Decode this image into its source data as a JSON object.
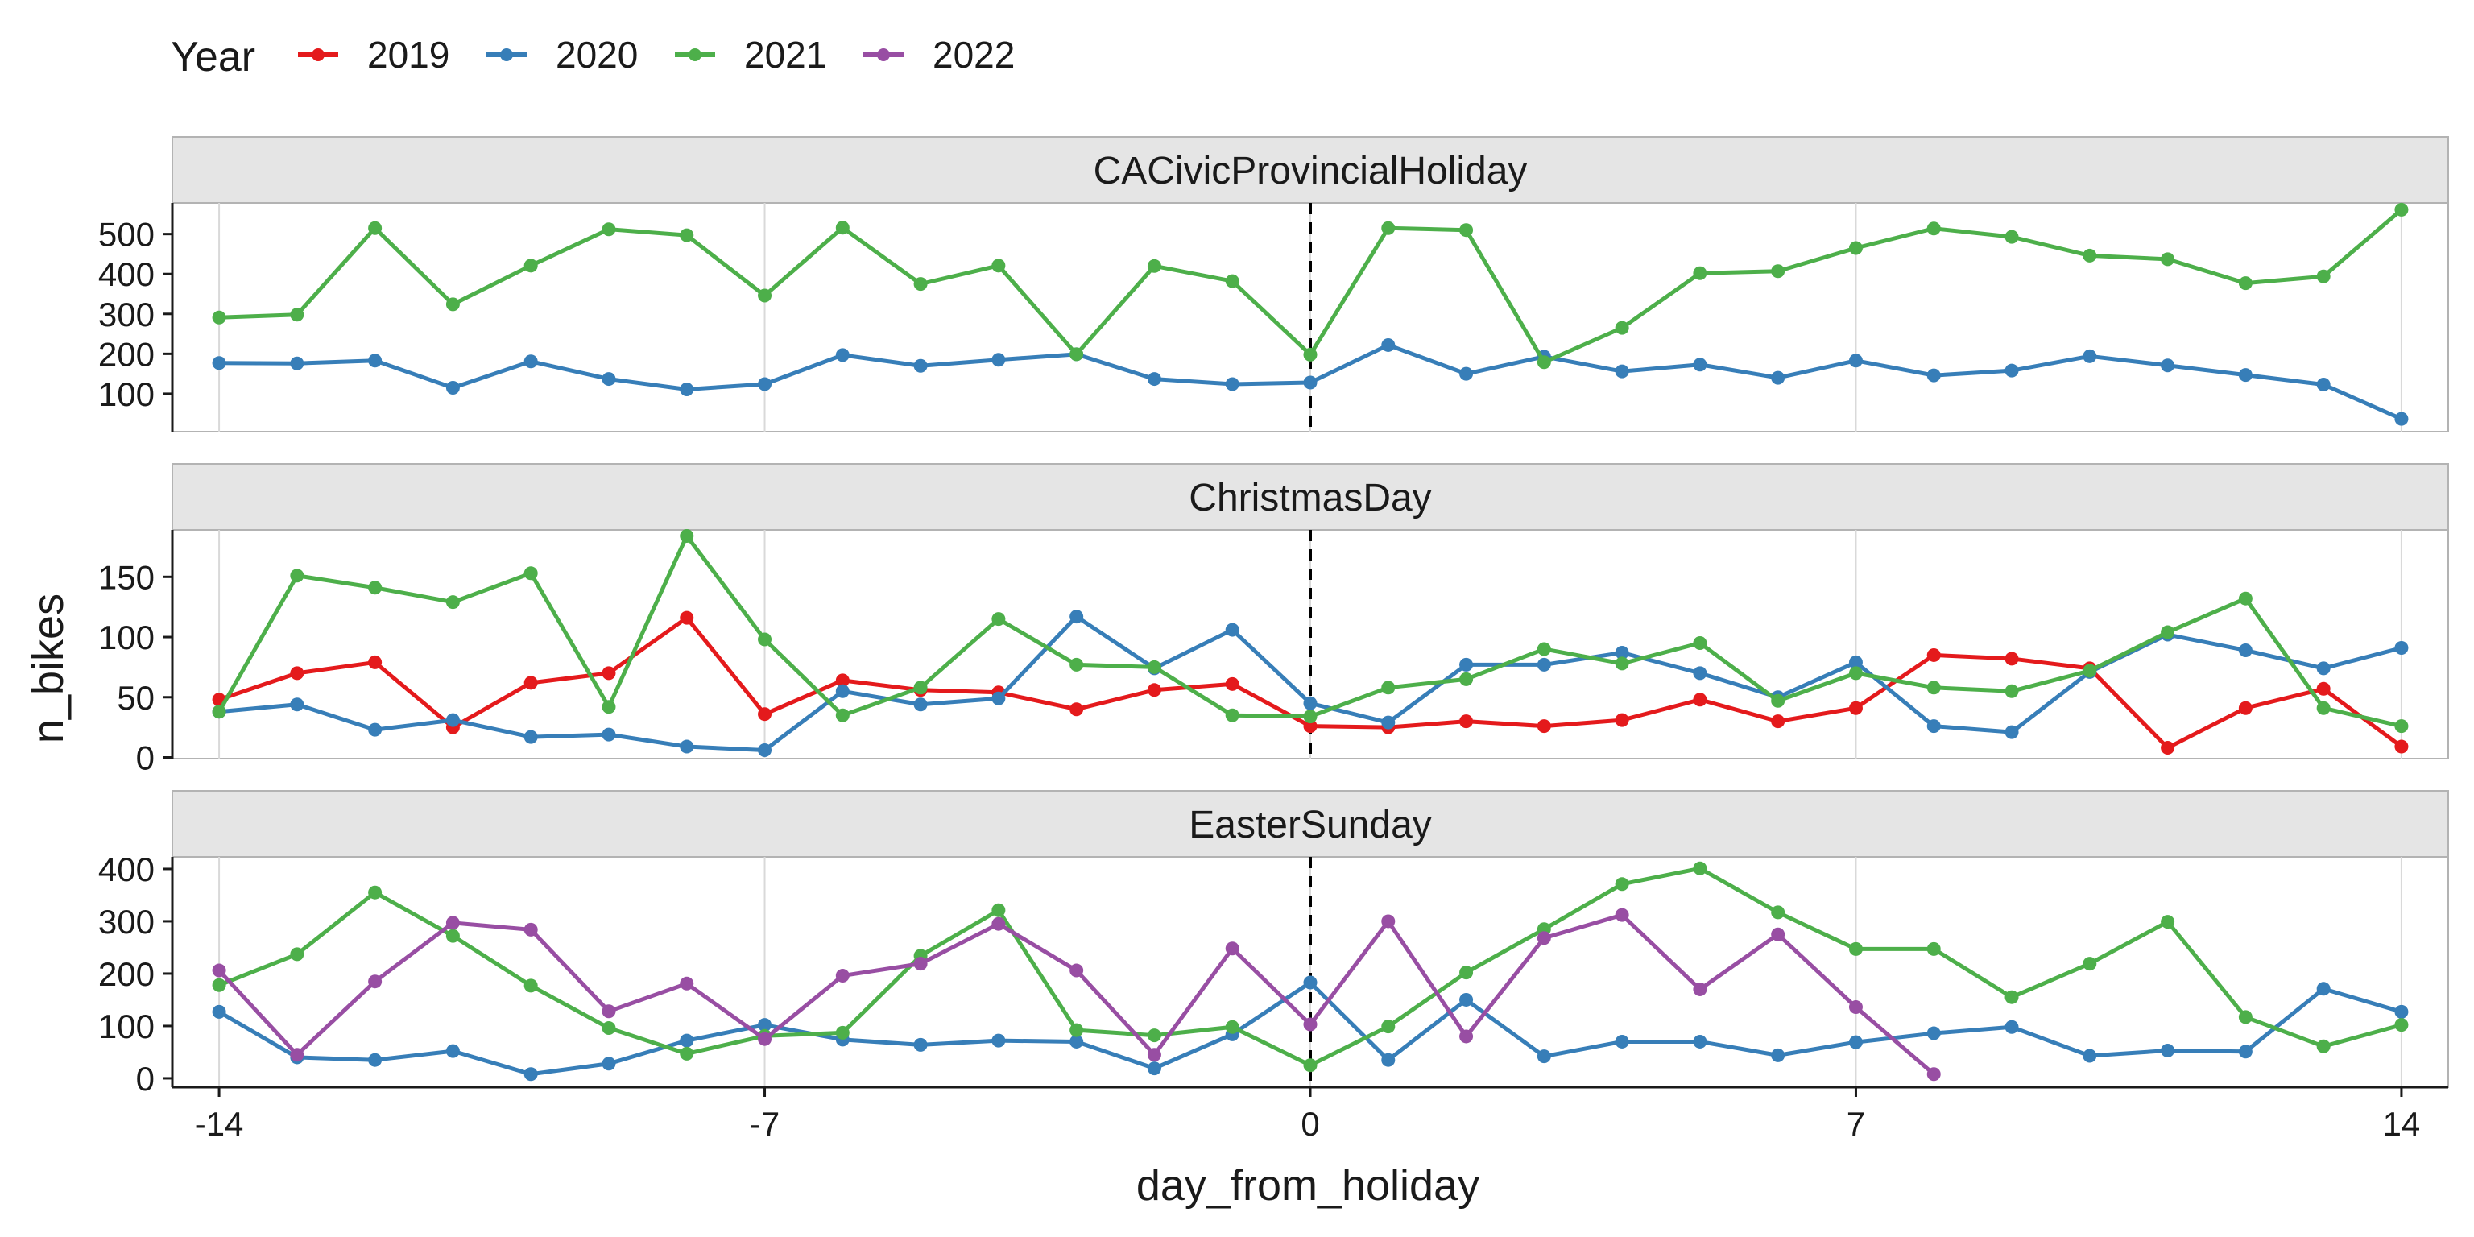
{
  "colors": {
    "2019": "#e41a1c",
    "2020": "#377eb8",
    "2021": "#4daf4a",
    "2022": "#984ea3",
    "strip_fill": "#e5e5e5",
    "grid": "#d9d9d9"
  },
  "chart_data": {
    "type": "line",
    "legend": {
      "title": "Year",
      "position": "top-left",
      "entries": [
        "2019",
        "2020",
        "2021",
        "2022"
      ]
    },
    "xlabel": "day_from_holiday",
    "ylabel": "n_bikes",
    "x_ticks": [
      -14,
      -7,
      0,
      7,
      14
    ],
    "x_range": [
      -14.6,
      14.6
    ],
    "vline_x": 0,
    "grid": true,
    "panels": [
      {
        "title": "CACivicProvincialHoliday",
        "ylim": [
          5,
          578
        ],
        "y_ticks": [
          100,
          200,
          300,
          400,
          500
        ],
        "series": [
          {
            "name": "2020",
            "x": [
              -14,
              -13,
              -12,
              -11,
              -10,
              -9,
              -8,
              -7,
              -6,
              -5,
              -4,
              -3,
              -2,
              -1,
              0,
              1,
              2,
              3,
              4,
              5,
              6,
              7,
              8,
              9,
              10,
              11,
              12,
              13,
              14
            ],
            "y": [
              177,
              176,
              183,
              115,
              181,
              137,
              111,
              124,
              197,
              170,
              185,
              199,
              137,
              124,
              128,
              222,
              150,
              193,
              156,
              173,
              140,
              183,
              146,
              158,
              194,
              171,
              147,
              123,
              37
            ]
          },
          {
            "name": "2021",
            "x": [
              -14,
              -13,
              -12,
              -11,
              -10,
              -9,
              -8,
              -7,
              -6,
              -5,
              -4,
              -3,
              -2,
              -1,
              0,
              1,
              2,
              3,
              4,
              5,
              6,
              7,
              8,
              9,
              10,
              11,
              12,
              13,
              14
            ],
            "y": [
              291,
              298,
              515,
              324,
              421,
              512,
              497,
              346,
              516,
              375,
              421,
              199,
              420,
              382,
              198,
              515,
              510,
              179,
              265,
              402,
              407,
              465,
              514,
              493,
              446,
              437,
              377,
              394,
              561
            ]
          }
        ]
      },
      {
        "title": "ChristmasDay",
        "ylim": [
          -1,
          189
        ],
        "y_ticks": [
          0,
          50,
          100,
          150
        ],
        "series": [
          {
            "name": "2019",
            "x": [
              -14,
              -13,
              -12,
              -11,
              -10,
              -9,
              -8,
              -7,
              -6,
              -5,
              -4,
              -3,
              -2,
              -1,
              0,
              1,
              2,
              3,
              4,
              5,
              6,
              7,
              8,
              9,
              10,
              11,
              12,
              13,
              14
            ],
            "y": [
              48,
              70,
              79,
              25,
              62,
              70,
              116,
              36,
              64,
              56,
              54,
              40,
              56,
              61,
              26,
              25,
              30,
              26,
              31,
              48,
              30,
              41,
              85,
              82,
              74,
              8,
              41,
              57,
              9
            ]
          },
          {
            "name": "2020",
            "x": [
              -14,
              -13,
              -12,
              -11,
              -10,
              -9,
              -8,
              -7,
              -6,
              -5,
              -4,
              -3,
              -2,
              -1,
              0,
              1,
              2,
              3,
              4,
              5,
              6,
              7,
              8,
              9,
              10,
              11,
              12,
              13,
              14
            ],
            "y": [
              38,
              44,
              23,
              31,
              17,
              19,
              9,
              6,
              55,
              44,
              49,
              117,
              74,
              106,
              45,
              29,
              77,
              77,
              87,
              70,
              50,
              79,
              26,
              21,
              71,
              102,
              89,
              74,
              91
            ]
          },
          {
            "name": "2021",
            "x": [
              -14,
              -13,
              -12,
              -11,
              -10,
              -9,
              -8,
              -7,
              -6,
              -5,
              -4,
              -3,
              -2,
              -1,
              0,
              1,
              2,
              3,
              4,
              5,
              6,
              7,
              8,
              9,
              10,
              11,
              12,
              13,
              14
            ],
            "y": [
              38,
              151,
              141,
              129,
              153,
              42,
              184,
              98,
              35,
              58,
              115,
              77,
              75,
              35,
              34,
              58,
              65,
              90,
              78,
              95,
              47,
              70,
              58,
              55,
              72,
              104,
              132,
              41,
              26
            ]
          }
        ]
      },
      {
        "title": "EasterSunday",
        "ylim": [
          -17,
          423
        ],
        "y_ticks": [
          0,
          100,
          200,
          300,
          400
        ],
        "series": [
          {
            "name": "2020",
            "x": [
              -14,
              -13,
              -12,
              -11,
              -10,
              -9,
              -8,
              -7,
              -6,
              -5,
              -4,
              -3,
              -2,
              -1,
              0,
              1,
              2,
              3,
              4,
              5,
              6,
              7,
              8,
              9,
              10,
              11,
              12,
              13,
              14
            ],
            "y": [
              127,
              40,
              35,
              52,
              8,
              28,
              72,
              102,
              74,
              64,
              72,
              70,
              19,
              84,
              183,
              35,
              150,
              42,
              70,
              70,
              44,
              69,
              86,
              98,
              43,
              53,
              51,
              171,
              127
            ]
          },
          {
            "name": "2021",
            "x": [
              -14,
              -13,
              -12,
              -11,
              -10,
              -9,
              -8,
              -7,
              -6,
              -5,
              -4,
              -3,
              -2,
              -1,
              0,
              1,
              2,
              3,
              4,
              5,
              6,
              7,
              8,
              9,
              10,
              11,
              12,
              13,
              14
            ],
            "y": [
              178,
              237,
              355,
              272,
              177,
              96,
              47,
              81,
              87,
              234,
              321,
              92,
              82,
              98,
              25,
              99,
              202,
              285,
              371,
              401,
              317,
              247,
              247,
              155,
              219,
              299,
              117,
              61,
              102
            ]
          },
          {
            "name": "2022",
            "x": [
              -14,
              -13,
              -12,
              -11,
              -10,
              -9,
              -8,
              -7,
              -6,
              -5,
              -4,
              -3,
              -2,
              -1,
              0,
              1,
              2,
              3,
              4,
              5,
              6,
              7,
              8
            ],
            "y": [
              206,
              45,
              185,
              297,
              284,
              128,
              181,
              75,
              196,
              219,
              295,
              206,
              45,
              248,
              103,
              300,
              80,
              268,
              312,
              170,
              275,
              136,
              8
            ]
          }
        ]
      }
    ]
  }
}
